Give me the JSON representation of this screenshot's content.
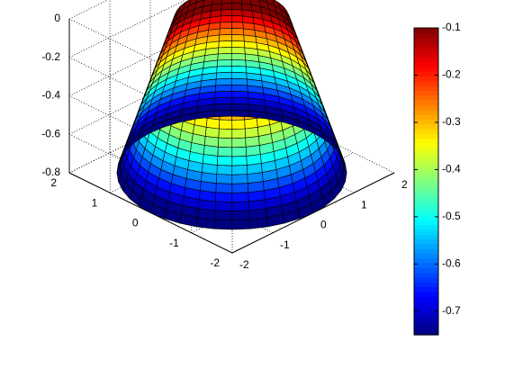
{
  "chart_data": {
    "type": "surface",
    "colormap": "jet",
    "grid": true,
    "surface": {
      "shape": "frustum",
      "bottom_radius": 2,
      "top_radius": 1,
      "z_bottom": -0.8,
      "z_top": 0,
      "rings": 20,
      "segments": 40
    },
    "axes": {
      "x": {
        "range": [
          -2,
          2
        ],
        "ticks": [
          -2,
          -1,
          0,
          1,
          2
        ],
        "tick_labels": [
          "-2",
          "-1",
          "0",
          "1",
          "2"
        ]
      },
      "y": {
        "range": [
          -2,
          2
        ],
        "ticks": [
          -2,
          -1,
          0,
          1,
          2
        ],
        "tick_labels": [
          "-2",
          "-1",
          "0",
          "1",
          "2"
        ]
      },
      "z": {
        "range": [
          -0.8,
          0
        ],
        "ticks": [
          -0.8,
          -0.6,
          -0.4,
          -0.2,
          0
        ],
        "tick_labels": [
          "-0.8",
          "-0.6",
          "-0.4",
          "-0.2",
          "0"
        ]
      }
    },
    "colorbar": {
      "range": [
        -0.75,
        -0.1
      ],
      "ticks": [
        -0.7,
        -0.6,
        -0.5,
        -0.4,
        -0.3,
        -0.2,
        -0.1
      ],
      "tick_labels": [
        "-0.7",
        "-0.6",
        "-0.5",
        "-0.4",
        "-0.3",
        "-0.2",
        "-0.1"
      ],
      "position": "right"
    }
  }
}
